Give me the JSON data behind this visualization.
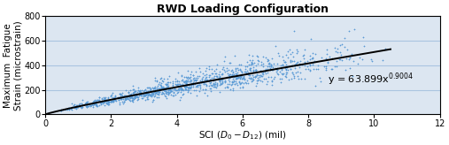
{
  "title": "RWD Loading Configuration",
  "xlabel": "SCI ($D_0 - D_{12}$) (mil)",
  "ylabel": "Maximum  Fatigue\nStrain (microstrain)",
  "xlim": [
    0,
    12
  ],
  "ylim": [
    0,
    800
  ],
  "xticks": [
    0,
    2,
    4,
    6,
    8,
    10,
    12
  ],
  "yticks": [
    0,
    200,
    400,
    600,
    800
  ],
  "equation_label": "y = 63.899x$^{0.9004}$",
  "equation_x": 8.6,
  "equation_y": 285,
  "trend_a": 63.899,
  "trend_b": 0.9004,
  "scatter_color": "#5b9bd5",
  "scatter_marker": "+",
  "scatter_marker_size": 4,
  "scatter_linewidth": 0.5,
  "trend_color": "#000000",
  "trend_linewidth": 1.4,
  "background_color": "#ffffff",
  "plot_bg_color": "#dce6f1",
  "grid_color": "#aac4e0",
  "title_fontsize": 9,
  "label_fontsize": 7.5,
  "tick_fontsize": 7,
  "eq_fontsize": 8,
  "seed": 42,
  "n_points": 1200,
  "x_data_max": 10.5,
  "x_data_min": 0.3,
  "scatter_sigma": 0.18
}
